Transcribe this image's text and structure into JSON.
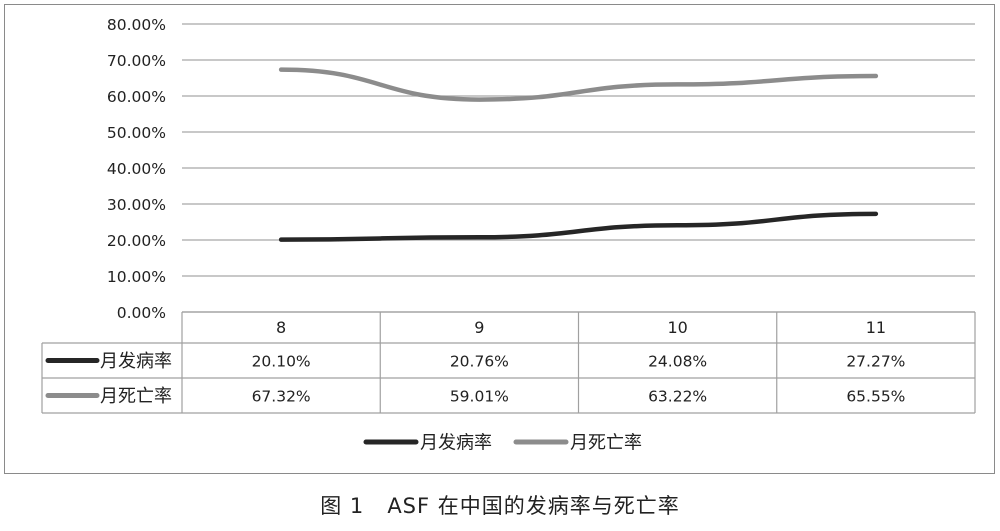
{
  "caption": {
    "label": "图 1",
    "text": "ASF 在中国的发病率与死亡率"
  },
  "chart_data": {
    "type": "line",
    "categories": [
      "8",
      "9",
      "10",
      "11"
    ],
    "series": [
      {
        "name": "月发病率",
        "values": [
          20.1,
          20.76,
          24.08,
          27.27
        ],
        "labels": [
          "20.10%",
          "20.76%",
          "24.08%",
          "27.27%"
        ],
        "color": "#262626"
      },
      {
        "name": "月死亡率",
        "values": [
          67.32,
          59.01,
          63.22,
          65.55
        ],
        "labels": [
          "67.32%",
          "59.01%",
          "63.22%",
          "65.55%"
        ],
        "color": "#8c8c8c"
      }
    ],
    "y_ticks": [
      "0.00%",
      "10.00%",
      "20.00%",
      "30.00%",
      "40.00%",
      "50.00%",
      "60.00%",
      "70.00%",
      "80.00%"
    ],
    "ylim": [
      0,
      80
    ],
    "grid": true,
    "legend": "bottom-center",
    "data_table": true
  }
}
